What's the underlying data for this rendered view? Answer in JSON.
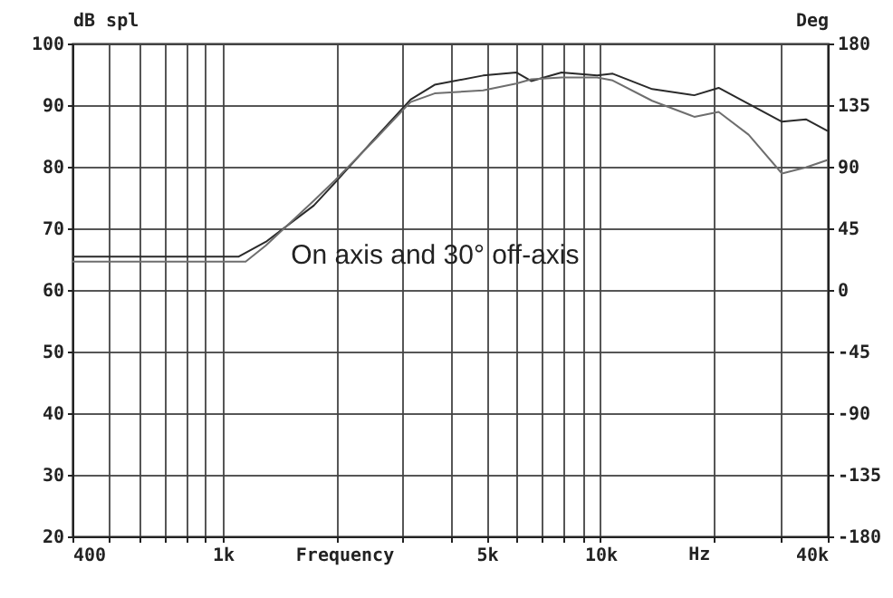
{
  "chart_data": {
    "type": "line",
    "xlabel": "Frequency",
    "ylabel": "dB spl",
    "y2label": "Deg",
    "annotations": [
      "On axis and 30° off-axis",
      "Hz"
    ],
    "log": "x",
    "grid": true,
    "line_style": "solid",
    "xlim": [
      400,
      40000
    ],
    "xticks": [
      400,
      {
        "value": 500,
        "label": null
      },
      {
        "value": 600,
        "label": null
      },
      {
        "value": 700,
        "label": null
      },
      {
        "value": 800,
        "label": null
      },
      {
        "value": 900,
        "label": null
      },
      {
        "value": 1000,
        "label": "1k"
      },
      {
        "value": 2000,
        "label": null
      },
      {
        "value": 3000,
        "label": null
      },
      {
        "value": 4000,
        "label": null
      },
      {
        "value": 5000,
        "label": "5k"
      },
      {
        "value": 6000,
        "label": null
      },
      {
        "value": 7000,
        "label": null
      },
      {
        "value": 8000,
        "label": null
      },
      {
        "value": 9000,
        "label": null
      },
      {
        "value": 10000,
        "label": "10k"
      },
      {
        "value": 20000,
        "label": null
      },
      {
        "value": 30000,
        "label": null
      },
      {
        "value": 40000,
        "label": "40k"
      }
    ],
    "ylim": [
      20,
      100
    ],
    "yticks": [
      20,
      30,
      40,
      50,
      60,
      70,
      80,
      90,
      100
    ],
    "y2lim": [
      -180,
      180
    ],
    "y2ticks": [
      -180,
      -135,
      -90,
      -45,
      0,
      45,
      90,
      135,
      180
    ],
    "series": [
      {
        "color": "#2a2a2a",
        "x": [
          400,
          1100,
          1300,
          1742,
          1983,
          2520,
          3143,
          3640,
          4890,
          5985,
          6560,
          7890,
          9800,
          10780,
          13710,
          17730,
          20560,
          24680,
          30250,
          35000,
          40000
        ],
        "values": [
          65.4,
          65.4,
          67.8,
          73.7,
          77.4,
          84.5,
          90.9,
          93.3,
          94.8,
          95.3,
          93.9,
          95.3,
          94.8,
          95.1,
          92.6,
          91.6,
          92.8,
          90.2,
          87.3,
          87.7,
          85.8
        ]
      },
      {
        "color": "#6e6e6e",
        "x": [
          400,
          1150,
          1300,
          1742,
          1983,
          2520,
          3143,
          3640,
          4890,
          5985,
          6560,
          7890,
          9800,
          10780,
          13710,
          17730,
          20560,
          24680,
          30250,
          35000,
          40000
        ],
        "values": [
          64.6,
          64.6,
          67.2,
          74.5,
          77.8,
          84.3,
          90.5,
          91.9,
          92.4,
          93.5,
          94.2,
          94.5,
          94.5,
          94.0,
          90.7,
          88.1,
          88.9,
          85.2,
          78.9,
          79.9,
          81.1
        ]
      }
    ]
  }
}
